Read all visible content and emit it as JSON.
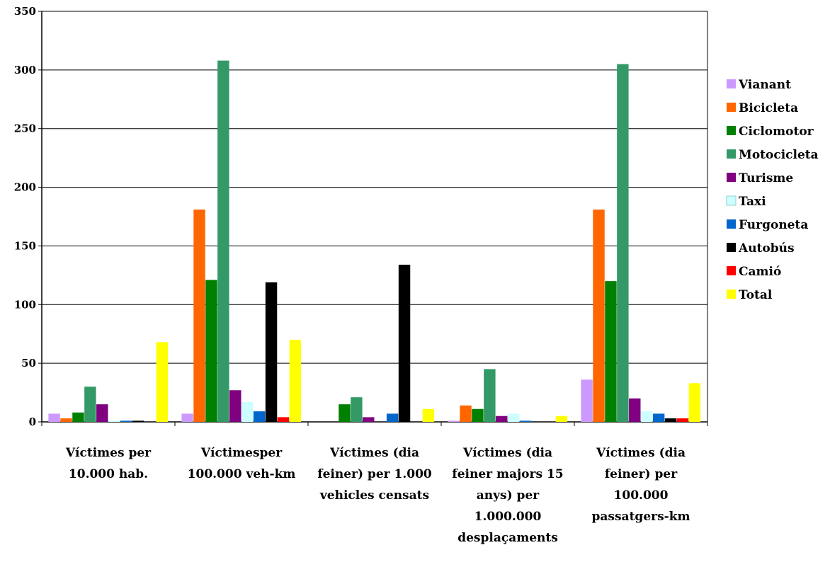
{
  "chart_data": {
    "type": "bar",
    "title": "",
    "xlabel": "",
    "ylabel": "",
    "ylim": [
      0,
      350
    ],
    "yticks": [
      0,
      50,
      100,
      150,
      200,
      250,
      300,
      350
    ],
    "grid": true,
    "legend_position": "right",
    "categories": [
      [
        "Víctimes per",
        "10.000 hab."
      ],
      [
        "Víctimesper",
        "100.000 veh-km"
      ],
      [
        "Víctimes (dia",
        "feiner) per 1.000",
        "vehicles censats"
      ],
      [
        "Víctimes (dia",
        "feiner majors 15",
        "anys) per",
        "1.000.000",
        "desplaçaments"
      ],
      [
        "Víctimes (dia",
        "feiner) per",
        "100.000",
        "passatgers-km"
      ]
    ],
    "series": [
      {
        "name": "Vianant",
        "color": "#CC99FF",
        "values": [
          7,
          7,
          0,
          1,
          36
        ]
      },
      {
        "name": "Bicicleta",
        "color": "#FF6600",
        "values": [
          3,
          181,
          0,
          14,
          181
        ]
      },
      {
        "name": "Ciclomotor",
        "color": "#008000",
        "values": [
          8,
          121,
          15,
          11,
          120
        ]
      },
      {
        "name": "Motocicleta",
        "color": "#339966",
        "values": [
          30,
          308,
          21,
          45,
          305
        ]
      },
      {
        "name": "Turisme",
        "color": "#800080",
        "values": [
          15,
          27,
          4,
          5,
          20
        ]
      },
      {
        "name": "Taxi",
        "color": "#CCFFFF",
        "values": [
          1,
          17,
          0,
          7,
          9
        ]
      },
      {
        "name": "Furgoneta",
        "color": "#0066CC",
        "values": [
          1,
          9,
          7,
          1,
          7
        ]
      },
      {
        "name": "Autobús",
        "color": "#000000",
        "values": [
          1,
          119,
          134,
          0,
          3
        ]
      },
      {
        "name": "Camió",
        "color": "#FF0000",
        "values": [
          0,
          4,
          0,
          0,
          3
        ]
      },
      {
        "name": "Total",
        "color": "#FFFF00",
        "values": [
          68,
          70,
          11,
          5,
          33
        ]
      }
    ]
  }
}
